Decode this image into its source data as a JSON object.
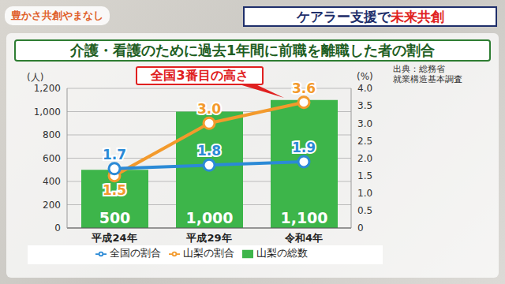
{
  "header": {
    "logo": "豊かさ共創やまなし",
    "banner": [
      "ケアラー支援で",
      "未来共創"
    ]
  },
  "chart_data": {
    "type": "bar",
    "title": "介護・看護のために過去1年間に前職を離職した者の割合",
    "source": [
      "出典：総務省",
      "就業構造基本調査"
    ],
    "annotations": [
      "全国3番目の高さ"
    ],
    "y_label": "(人)",
    "y2_label": "(%)",
    "categories": [
      "平成24年",
      "平成29年",
      "令和4年"
    ],
    "series": [
      {
        "name": "山梨の総数",
        "type": "bar",
        "color": "#3db54a",
        "values": [
          500,
          1000,
          1100
        ],
        "value_labels": [
          "500",
          "1,000",
          "1,100"
        ]
      },
      {
        "name": "山梨の割合",
        "type": "line",
        "axis": "y2",
        "color": "#f39a2c",
        "marker": "circle",
        "values": [
          1.5,
          3.0,
          3.6
        ],
        "value_labels": [
          "1.5",
          "3.0",
          "3.6"
        ]
      },
      {
        "name": "全国の割合",
        "type": "line",
        "axis": "y2",
        "color": "#2b8ad6",
        "marker": "circle",
        "values": [
          1.7,
          1.8,
          1.9
        ]
      }
    ],
    "data_labels": true,
    "ylim": [
      0,
      1200
    ],
    "yticks": [
      0,
      200,
      400,
      600,
      800,
      {
        "value": 1000,
        "label": "1,000"
      },
      {
        "value": 1200,
        "label": "1,200"
      }
    ],
    "y2lim": [
      0,
      4
    ],
    "y2ticks": [
      0,
      0.5,
      {
        "value": 1,
        "label": "1.0"
      },
      1.5,
      {
        "value": 2,
        "label": "2.0"
      },
      2.5,
      {
        "value": 3,
        "label": "3.0"
      },
      3.5,
      {
        "value": 4,
        "label": "4.0"
      }
    ],
    "grid": true,
    "legend": "bottom"
  }
}
